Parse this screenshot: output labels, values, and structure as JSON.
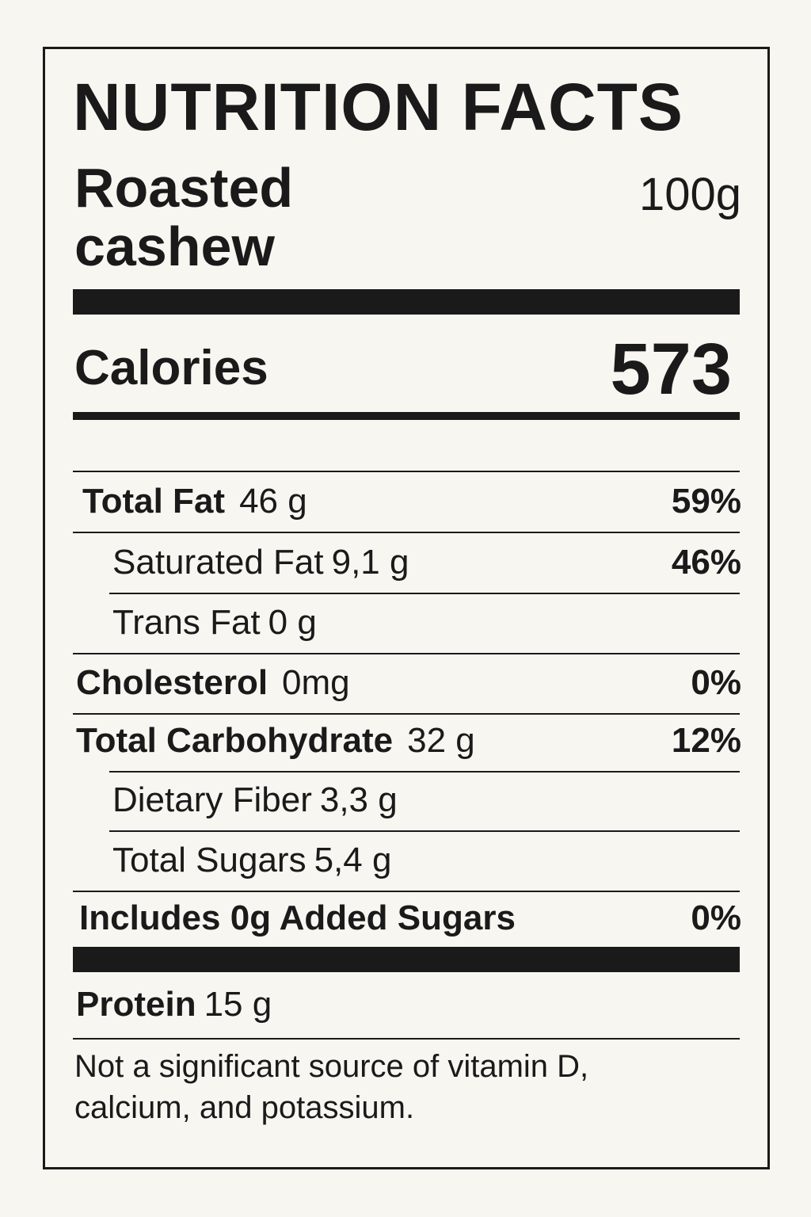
{
  "title": "NUTRITION FACTS",
  "product": {
    "name": "Roasted cashew",
    "serving": "100g"
  },
  "calories": {
    "label": "Calories",
    "value": "573"
  },
  "rows": [
    {
      "name": "Total Fat",
      "amount": "46 g",
      "dv": "59%"
    },
    {
      "name": "Saturated Fat",
      "amount": "9,1 g",
      "dv": "46%"
    },
    {
      "name": "Trans Fat",
      "amount": "0 g"
    },
    {
      "name": "Cholesterol",
      "amount": "0mg",
      "dv": "0%"
    },
    {
      "name": "Total Carbohydrate",
      "amount": "32 g",
      "dv": "12%"
    },
    {
      "name": "Dietary Fiber",
      "amount": "3,3 g"
    },
    {
      "name": "Total Sugars",
      "amount": "5,4 g"
    },
    {
      "name": "Includes 0g Added Sugars",
      "dv": "0%"
    }
  ],
  "protein": {
    "name": "Protein",
    "amount": "15 g"
  },
  "footnote": "Not a significant source of vitamin D, calcium, and  potassium."
}
